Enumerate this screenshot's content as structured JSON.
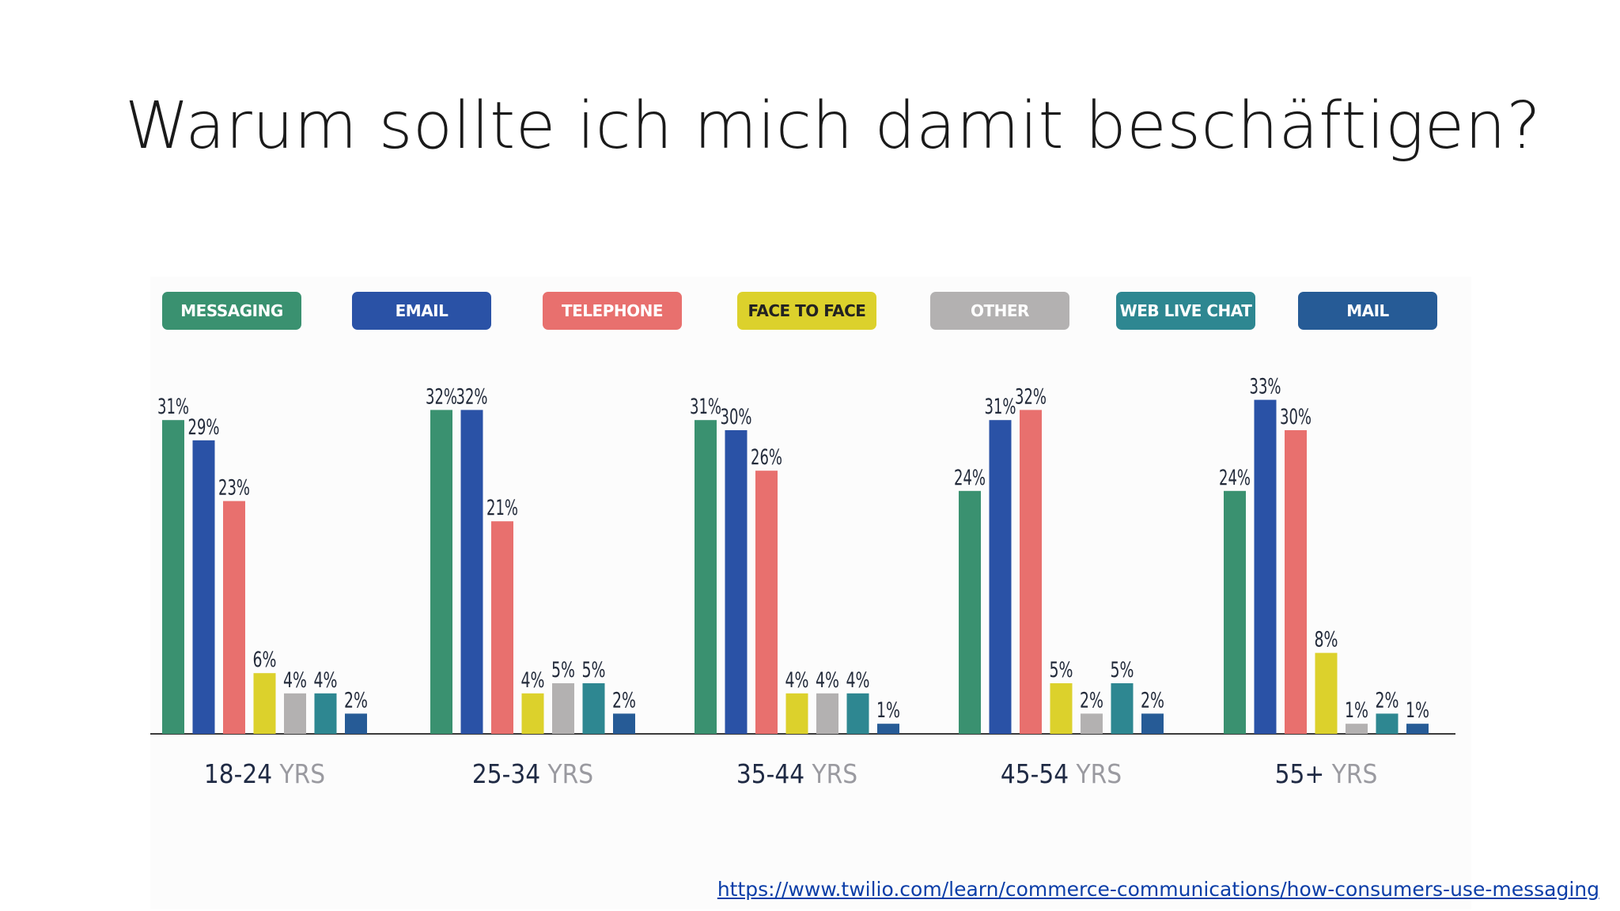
{
  "slide": {
    "title": "Warum sollte ich mich damit beschäftigen?",
    "source_link": "https://www.twilio.com/learn/commerce-communications/how-consumers-use-messaging"
  },
  "chart_data": {
    "type": "bar",
    "title": "",
    "xlabel": "",
    "ylabel": "",
    "ylim": [
      0,
      33
    ],
    "legend_position": "top",
    "categories": [
      {
        "num": "18-24",
        "suffix": "YRS"
      },
      {
        "num": "25-34",
        "suffix": "YRS"
      },
      {
        "num": "35-44",
        "suffix": "YRS"
      },
      {
        "num": "45-54",
        "suffix": "YRS"
      },
      {
        "num": "55+",
        "suffix": "YRS"
      }
    ],
    "series": [
      {
        "name": "MESSAGING",
        "color": "#3a9170",
        "values": [
          31,
          32,
          31,
          24,
          24
        ]
      },
      {
        "name": "EMAIL",
        "color": "#2a52a6",
        "values": [
          29,
          32,
          30,
          31,
          33
        ]
      },
      {
        "name": "TELEPHONE",
        "color": "#e8706e",
        "values": [
          23,
          21,
          26,
          32,
          30
        ]
      },
      {
        "name": "FACE TO FACE",
        "color": "#dcd12c",
        "values": [
          6,
          4,
          4,
          5,
          8
        ]
      },
      {
        "name": "OTHER",
        "color": "#b3b1b1",
        "values": [
          4,
          5,
          4,
          2,
          1
        ]
      },
      {
        "name": "WEB LIVE CHAT",
        "color": "#2e8791",
        "values": [
          4,
          5,
          4,
          5,
          2
        ]
      },
      {
        "name": "MAIL",
        "color": "#265b96",
        "values": [
          2,
          2,
          1,
          2,
          1
        ]
      }
    ],
    "legend_text_colors": [
      "#ffffff",
      "#ffffff",
      "#ffffff",
      "#222222",
      "#ffffff",
      "#ffffff",
      "#ffffff"
    ],
    "label_color": "#222a3a",
    "category_number_color": "#1f2a44",
    "category_suffix_color": "#9a9aa0"
  }
}
